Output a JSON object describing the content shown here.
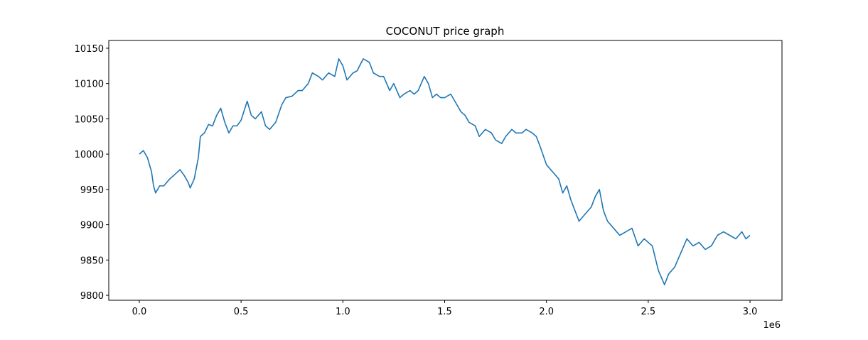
{
  "chart_data": {
    "type": "line",
    "title": "COCONUT price graph",
    "x_offset_text": "1e6",
    "x": [
      0,
      0.02,
      0.04,
      0.06,
      0.07,
      0.08,
      0.1,
      0.12,
      0.15,
      0.17,
      0.2,
      0.22,
      0.24,
      0.25,
      0.27,
      0.29,
      0.3,
      0.32,
      0.34,
      0.36,
      0.38,
      0.4,
      0.42,
      0.44,
      0.46,
      0.48,
      0.5,
      0.53,
      0.55,
      0.57,
      0.6,
      0.62,
      0.64,
      0.67,
      0.7,
      0.72,
      0.75,
      0.78,
      0.8,
      0.83,
      0.85,
      0.88,
      0.9,
      0.93,
      0.96,
      0.98,
      1.0,
      1.02,
      1.05,
      1.07,
      1.1,
      1.13,
      1.15,
      1.18,
      1.2,
      1.23,
      1.25,
      1.28,
      1.3,
      1.33,
      1.35,
      1.37,
      1.4,
      1.42,
      1.44,
      1.46,
      1.48,
      1.5,
      1.53,
      1.56,
      1.58,
      1.6,
      1.62,
      1.65,
      1.67,
      1.7,
      1.73,
      1.75,
      1.78,
      1.8,
      1.83,
      1.85,
      1.88,
      1.9,
      1.93,
      1.95,
      1.97,
      2.0,
      2.03,
      2.06,
      2.08,
      2.1,
      2.12,
      2.14,
      2.16,
      2.19,
      2.22,
      2.24,
      2.26,
      2.28,
      2.3,
      2.33,
      2.36,
      2.39,
      2.42,
      2.45,
      2.48,
      2.52,
      2.55,
      2.58,
      2.6,
      2.63,
      2.66,
      2.69,
      2.72,
      2.75,
      2.78,
      2.81,
      2.84,
      2.87,
      2.9,
      2.93,
      2.96,
      2.98,
      3.0
    ],
    "series": [
      {
        "name": "COCONUT",
        "color": "#1f77b4",
        "values": [
          10000,
          10005,
          9995,
          9975,
          9955,
          9945,
          9955,
          9955,
          9965,
          9970,
          9978,
          9970,
          9960,
          9952,
          9965,
          9995,
          10025,
          10030,
          10042,
          10040,
          10055,
          10065,
          10045,
          10030,
          10040,
          10040,
          10048,
          10075,
          10055,
          10050,
          10060,
          10040,
          10035,
          10045,
          10070,
          10080,
          10082,
          10090,
          10090,
          10100,
          10115,
          10110,
          10105,
          10115,
          10110,
          10135,
          10125,
          10105,
          10115,
          10118,
          10135,
          10130,
          10115,
          10110,
          10110,
          10090,
          10100,
          10080,
          10085,
          10090,
          10085,
          10090,
          10110,
          10100,
          10080,
          10085,
          10080,
          10080,
          10085,
          10070,
          10060,
          10055,
          10045,
          10040,
          10025,
          10035,
          10030,
          10020,
          10015,
          10025,
          10035,
          10030,
          10030,
          10035,
          10030,
          10025,
          10010,
          9985,
          9975,
          9965,
          9945,
          9955,
          9935,
          9920,
          9905,
          9915,
          9925,
          9940,
          9950,
          9920,
          9905,
          9895,
          9885,
          9890,
          9895,
          9870,
          9880,
          9870,
          9835,
          9815,
          9830,
          9840,
          9860,
          9880,
          9870,
          9875,
          9865,
          9870,
          9885,
          9890,
          9885,
          9880,
          9890,
          9880,
          9885
        ]
      }
    ],
    "xlim": [
      -0.15,
      3.157
    ],
    "ylim": [
      9793,
      10161
    ],
    "xticks": [
      {
        "value": 0,
        "label": "0.0"
      },
      0.5,
      {
        "value": 1,
        "label": "1.0"
      },
      1.5,
      {
        "value": 2,
        "label": "2.0"
      },
      2.5,
      {
        "value": 3,
        "label": "3.0"
      }
    ],
    "yticks": [
      9800,
      9850,
      9900,
      9950,
      10000,
      10050,
      10100,
      10150
    ],
    "grid": false
  }
}
